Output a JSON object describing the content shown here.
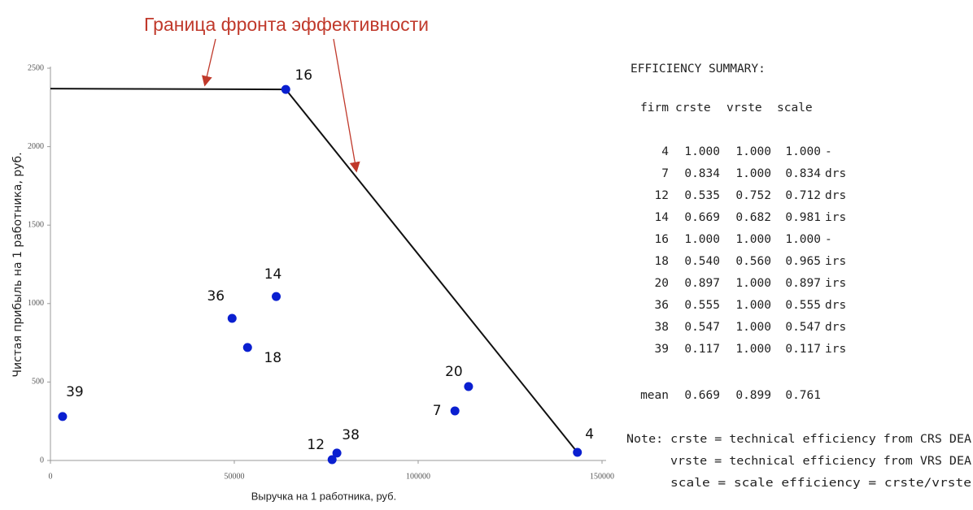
{
  "chart_data": {
    "type": "scatter",
    "annotation": "Граница фронта эффективности",
    "x_label": "Выручка на 1 работника, руб.",
    "y_label": "Чистая прибыль на 1 работника, руб.",
    "xlim": [
      0,
      150000
    ],
    "ylim": [
      0,
      2500
    ],
    "xticks": [
      0,
      50000,
      100000,
      150000
    ],
    "yticks": [
      0,
      500,
      1000,
      1500,
      2000,
      2500
    ],
    "series": [
      {
        "color": "#0a1fd0",
        "labels": [
          "16",
          "4",
          "14",
          "36",
          "18",
          "39",
          "20",
          "7",
          "12",
          "38"
        ],
        "x": [
          64000,
          143300,
          61400,
          49400,
          53600,
          3300,
          113700,
          110000,
          76600,
          77900
        ],
        "values": [
          2365,
          52,
          1045,
          906,
          720,
          280,
          471,
          316,
          5,
          47
        ]
      }
    ],
    "frontier": {
      "color": "#111111",
      "x": [
        0,
        64000,
        143300
      ],
      "values": [
        2370,
        2365,
        52
      ]
    }
  },
  "summary": {
    "title": "EFFICIENCY SUMMARY:",
    "header": [
      "firm",
      "crste",
      "vrste",
      "scale"
    ],
    "rows": [
      [
        "4",
        "1.000",
        "1.000",
        "1.000",
        "-"
      ],
      [
        "7",
        "0.834",
        "1.000",
        "0.834",
        "drs"
      ],
      [
        "12",
        "0.535",
        "0.752",
        "0.712",
        "drs"
      ],
      [
        "14",
        "0.669",
        "0.682",
        "0.981",
        "irs"
      ],
      [
        "16",
        "1.000",
        "1.000",
        "1.000",
        "-"
      ],
      [
        "18",
        "0.540",
        "0.560",
        "0.965",
        "irs"
      ],
      [
        "20",
        "0.897",
        "1.000",
        "0.897",
        "irs"
      ],
      [
        "36",
        "0.555",
        "1.000",
        "0.555",
        "drs"
      ],
      [
        "38",
        "0.547",
        "1.000",
        "0.547",
        "drs"
      ],
      [
        "39",
        "0.117",
        "1.000",
        "0.117",
        "irs"
      ]
    ],
    "mean": [
      "mean",
      "0.669",
      "0.899",
      "0.761"
    ],
    "notes": [
      "Note: crste = technical efficiency from CRS DEA",
      "vrste = technical efficiency from VRS DEA",
      "scale = scale efficiency = crste/vrste"
    ]
  }
}
